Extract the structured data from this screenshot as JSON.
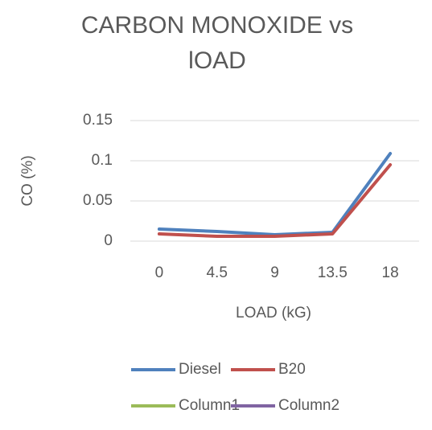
{
  "chart_data": {
    "type": "line",
    "title": "CARBON MONOXIDE vs lOAD",
    "x_label": "LOAD (kG)",
    "y_label": "CO (%)",
    "categories": [
      "0",
      "4.5",
      "9",
      "13.5",
      "18"
    ],
    "series": [
      {
        "name": "Diesel",
        "color": "#4f81bd",
        "values": [
          0.015,
          0.012,
          0.008,
          0.011,
          0.109
        ]
      },
      {
        "name": "B20",
        "color": "#c0504d",
        "values": [
          0.009,
          0.006,
          0.006,
          0.009,
          0.095
        ]
      },
      {
        "name": "Column1",
        "color": "#9bbb59",
        "values": [
          null,
          null,
          null,
          null,
          null
        ]
      },
      {
        "name": "Column2",
        "color": "#8064a2",
        "values": [
          null,
          null,
          null,
          null,
          null
        ]
      }
    ],
    "ylim": [
      0,
      0.15
    ],
    "yticks": [
      0,
      0.05,
      0.1,
      0.15
    ],
    "grid": true
  }
}
